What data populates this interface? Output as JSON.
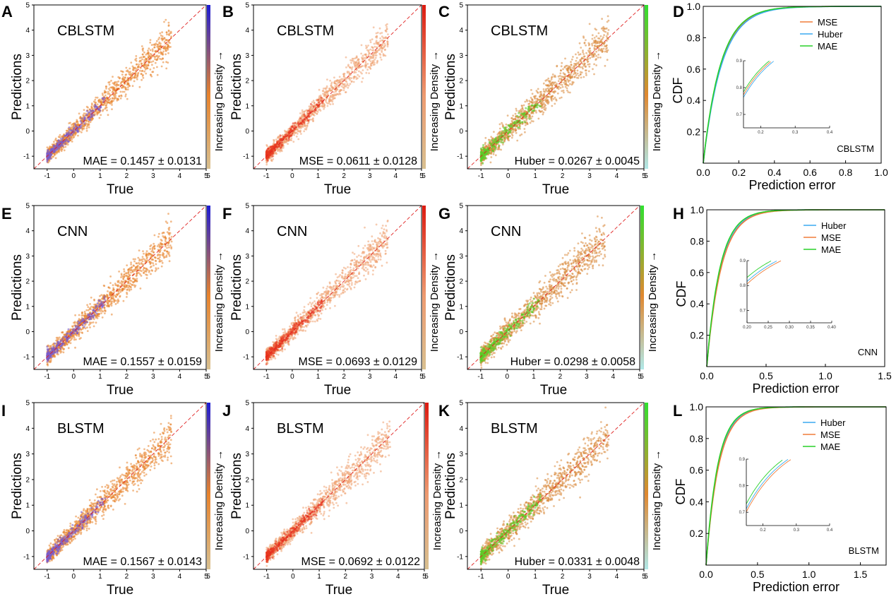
{
  "figure": {
    "background": "#ffffff"
  },
  "chart_data": [
    {
      "panel": "A",
      "type": "scatter",
      "title": "CBLSTM",
      "xlabel": "True",
      "ylabel": "Predictions",
      "xlim": [
        -1.5,
        5
      ],
      "ylim": [
        -1.5,
        5
      ],
      "xticks": [
        "-1",
        "0",
        "1",
        "2",
        "3",
        "4",
        "5"
      ],
      "yticks": [
        "-1",
        "0",
        "1",
        "2",
        "3",
        "4",
        "5"
      ],
      "metric": "MAE = 0.1457 ± 0.0131",
      "colorbar": {
        "label": "Increasing Density →",
        "low": "#d8c090",
        "mid": "#e8832c",
        "high": "#1c1cd4"
      },
      "point_color": "#e8832c",
      "dense_color": "#7b5bc8",
      "spread": 0.3
    },
    {
      "panel": "B",
      "type": "scatter",
      "title": "CBLSTM",
      "xlabel": "True",
      "ylabel": "Predictions",
      "xlim": [
        -1.5,
        5
      ],
      "ylim": [
        -1.5,
        5
      ],
      "xticks": [
        "-1",
        "0",
        "1",
        "2",
        "3",
        "4",
        "5"
      ],
      "yticks": [
        "-1",
        "0",
        "1",
        "2",
        "3",
        "4",
        "5"
      ],
      "metric": "MSE = 0.0611 ± 0.0128",
      "colorbar": {
        "label": "Increasing Density →",
        "low": "#d8c090",
        "mid": "#ee9a70",
        "high": "#dd1a10"
      },
      "point_color": "#eea070",
      "dense_color": "#e83820",
      "spread": 0.28
    },
    {
      "panel": "C",
      "type": "scatter",
      "title": "CBLSTM",
      "xlabel": "True",
      "ylabel": "Predictions",
      "xlim": [
        -1.5,
        5
      ],
      "ylim": [
        -1.5,
        5
      ],
      "xticks": [
        "-1",
        "0",
        "1",
        "2",
        "3",
        "4",
        "5"
      ],
      "yticks": [
        "-1",
        "0",
        "1",
        "2",
        "3",
        "4",
        "5"
      ],
      "metric": "Huber = 0.0267 ± 0.0045",
      "colorbar": {
        "label": "Increasing Density →",
        "low": "#b0e8e8",
        "mid": "#e08830",
        "high": "#30e030"
      },
      "point_color": "#d8883a",
      "dense_color": "#5ccc28",
      "spread": 0.34
    },
    {
      "panel": "D",
      "type": "line",
      "xlabel": "Prediction error",
      "ylabel": "CDF",
      "xlim": [
        0,
        1
      ],
      "ylim": [
        0,
        1
      ],
      "xticks": [
        "0.0",
        "0.2",
        "0.4",
        "0.6",
        "0.8",
        "1.0"
      ],
      "yticks": [
        "0.2",
        "0.4",
        "0.6",
        "0.8",
        "1.0"
      ],
      "legend_position": "top-right",
      "series": [
        {
          "name": "MSE",
          "color": "#f07d3a",
          "scale": 0.101
        },
        {
          "name": "Huber",
          "color": "#3aaaf0",
          "scale": 0.104
        },
        {
          "name": "MAE",
          "color": "#28d028",
          "scale": 0.098
        }
      ],
      "model": "CBLSTM",
      "inset": {
        "xlim": [
          0.15,
          0.4
        ],
        "ylim": [
          0.65,
          0.9
        ],
        "xticks": [
          "0.2",
          "0.3",
          "0.4"
        ],
        "yticks": [
          "0.7",
          "0.8",
          "0.9"
        ]
      }
    },
    {
      "panel": "E",
      "type": "scatter",
      "title": "CNN",
      "xlabel": "True",
      "ylabel": "Predictions",
      "xlim": [
        -1.5,
        5
      ],
      "ylim": [
        -1.5,
        5
      ],
      "xticks": [
        "-1",
        "0",
        "1",
        "2",
        "3",
        "4",
        "5"
      ],
      "yticks": [
        "-1",
        "0",
        "1",
        "2",
        "3",
        "4",
        "5"
      ],
      "metric": "MAE = 0.1557 ± 0.0159",
      "colorbar": {
        "label": "Increasing Density →",
        "low": "#d8c090",
        "mid": "#e8832c",
        "high": "#1c1cd4"
      },
      "point_color": "#e8832c",
      "dense_color": "#7b5bc8",
      "spread": 0.32
    },
    {
      "panel": "F",
      "type": "scatter",
      "title": "CNN",
      "xlabel": "True",
      "ylabel": "Predictions",
      "xlim": [
        -1.5,
        5
      ],
      "ylim": [
        -1.5,
        5
      ],
      "xticks": [
        "-1",
        "0",
        "1",
        "2",
        "3",
        "4",
        "5"
      ],
      "yticks": [
        "-1",
        "0",
        "1",
        "2",
        "3",
        "4",
        "5"
      ],
      "metric": "MSE = 0.0693 ± 0.0129",
      "colorbar": {
        "label": "Increasing Density →",
        "low": "#d8c090",
        "mid": "#ee9a70",
        "high": "#dd1a10"
      },
      "point_color": "#eea070",
      "dense_color": "#e83820",
      "spread": 0.3
    },
    {
      "panel": "G",
      "type": "scatter",
      "title": "CNN",
      "xlabel": "True",
      "ylabel": "Predictions",
      "xlim": [
        -1.5,
        5
      ],
      "ylim": [
        -1.5,
        5
      ],
      "xticks": [
        "-1",
        "0",
        "1",
        "2",
        "3",
        "4",
        "5"
      ],
      "yticks": [
        "-1",
        "0",
        "1",
        "2",
        "3",
        "4",
        "5"
      ],
      "metric": "Huber = 0.0298 ± 0.0058",
      "colorbar": {
        "label": "Increasing Density →",
        "low": "#b0e8e8",
        "mid": "#e08830",
        "high": "#30e030"
      },
      "point_color": "#d8883a",
      "dense_color": "#5ccc28",
      "spread": 0.36
    },
    {
      "panel": "H",
      "type": "line",
      "xlabel": "Prediction error",
      "ylabel": "CDF",
      "xlim": [
        0,
        1.5
      ],
      "ylim": [
        0,
        1
      ],
      "xticks": [
        "0.0",
        "0.5",
        "1.0",
        "1.5"
      ],
      "yticks": [
        "0.2",
        "0.4",
        "0.6",
        "0.8",
        "1.0"
      ],
      "legend_position": "top-right",
      "series": [
        {
          "name": "Huber",
          "color": "#3aaaf0",
          "scale": 0.118
        },
        {
          "name": "MSE",
          "color": "#f07d3a",
          "scale": 0.122
        },
        {
          "name": "MAE",
          "color": "#28d028",
          "scale": 0.112
        }
      ],
      "model": "CNN",
      "inset": {
        "xlim": [
          0.2,
          0.4
        ],
        "ylim": [
          0.65,
          0.9
        ],
        "xticks": [
          "0.20",
          "0.25",
          "0.30",
          "0.35",
          "0.40"
        ],
        "yticks": [
          "0.7",
          "0.8",
          "0.9"
        ]
      }
    },
    {
      "panel": "I",
      "type": "scatter",
      "title": "BLSTM",
      "xlabel": "True",
      "ylabel": "Predictions",
      "xlim": [
        -1.5,
        5
      ],
      "ylim": [
        -1.5,
        5
      ],
      "xticks": [
        "-1",
        "0",
        "1",
        "2",
        "3",
        "4",
        "5"
      ],
      "yticks": [
        "-1",
        "0",
        "1",
        "2",
        "3",
        "4",
        "5"
      ],
      "metric": "MAE = 0.1567 ± 0.0143",
      "colorbar": {
        "label": "Increasing Density →",
        "low": "#d8c090",
        "mid": "#e8832c",
        "high": "#1c1cd4"
      },
      "point_color": "#e8832c",
      "dense_color": "#7b5bc8",
      "spread": 0.33
    },
    {
      "panel": "J",
      "type": "scatter",
      "title": "BLSTM",
      "xlabel": "True",
      "ylabel": "Predictions",
      "xlim": [
        -1.5,
        5
      ],
      "ylim": [
        -1.5,
        5
      ],
      "xticks": [
        "-1",
        "0",
        "1",
        "2",
        "3",
        "4",
        "5"
      ],
      "yticks": [
        "-1",
        "0",
        "1",
        "2",
        "3",
        "4",
        "5"
      ],
      "metric": "MSE = 0.0692 ± 0.0122",
      "colorbar": {
        "label": "Increasing Density →",
        "low": "#d8c090",
        "mid": "#ee9a70",
        "high": "#dd1a10"
      },
      "point_color": "#eea070",
      "dense_color": "#e83820",
      "spread": 0.3
    },
    {
      "panel": "K",
      "type": "scatter",
      "title": "BLSTM",
      "xlabel": "True",
      "ylabel": "Predictions",
      "xlim": [
        -1.5,
        5
      ],
      "ylim": [
        -1.5,
        5
      ],
      "xticks": [
        "-1",
        "0",
        "1",
        "2",
        "3",
        "4",
        "5"
      ],
      "yticks": [
        "-1",
        "0",
        "1",
        "2",
        "3",
        "4",
        "5"
      ],
      "metric": "Huber = 0.0331 ± 0.0048",
      "colorbar": {
        "label": "Increasing Density →",
        "low": "#b0e8e8",
        "mid": "#e08830",
        "high": "#30e030"
      },
      "point_color": "#d8883a",
      "dense_color": "#5ccc28",
      "spread": 0.36
    },
    {
      "panel": "L",
      "type": "line",
      "xlabel": "Prediction error",
      "ylabel": "CDF",
      "xlim": [
        0,
        1.75
      ],
      "ylim": [
        0,
        1
      ],
      "xticks": [
        "0.0",
        "0.5",
        "1.0",
        "1.5"
      ],
      "yticks": [
        "0.2",
        "0.4",
        "0.6",
        "0.8",
        "1.0"
      ],
      "legend_position": "top-right",
      "series": [
        {
          "name": "Huber",
          "color": "#3aaaf0",
          "scale": 0.12
        },
        {
          "name": "MSE",
          "color": "#f07d3a",
          "scale": 0.124
        },
        {
          "name": "MAE",
          "color": "#28d028",
          "scale": 0.114
        }
      ],
      "model": "BLSTM",
      "inset": {
        "xlim": [
          0.15,
          0.4
        ],
        "ylim": [
          0.65,
          0.9
        ],
        "xticks": [
          "0.2",
          "0.3",
          "0.4"
        ],
        "yticks": [
          "0.7",
          "0.8",
          "0.9"
        ]
      }
    }
  ]
}
